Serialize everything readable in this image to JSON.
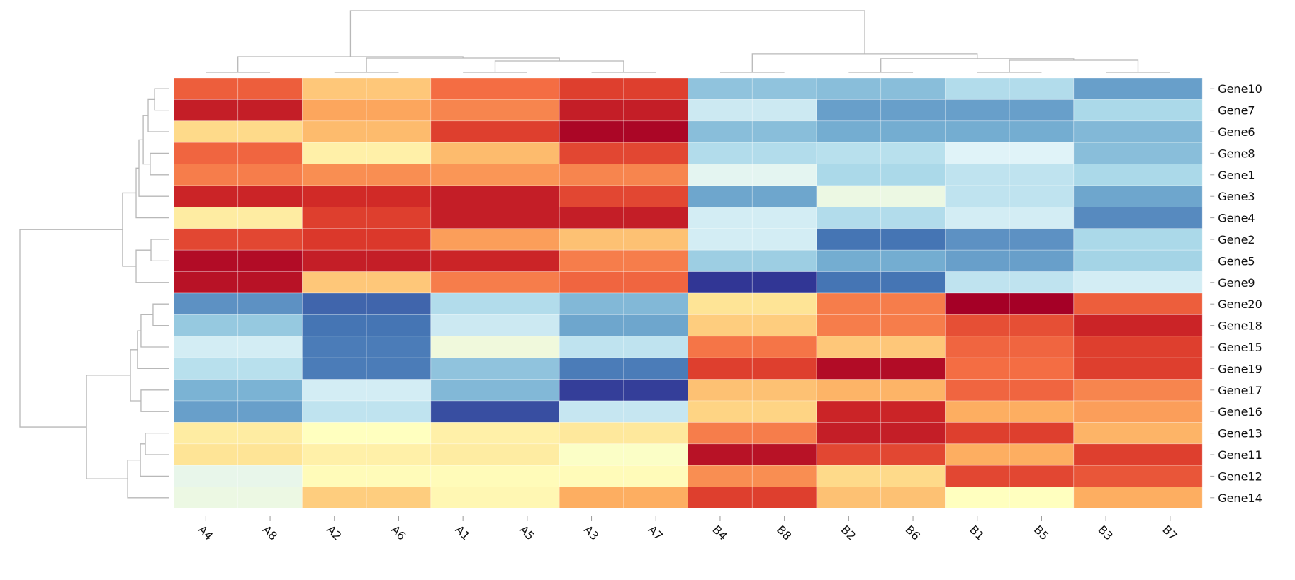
{
  "chart_data": {
    "type": "heatmap",
    "title": "",
    "xlabel": "",
    "ylabel": "",
    "columns": [
      "A4",
      "A8",
      "A2",
      "A6",
      "A1",
      "A5",
      "A3",
      "A7",
      "B4",
      "B8",
      "B2",
      "B6",
      "B1",
      "B5",
      "B3",
      "B7"
    ],
    "rows": [
      "Gene10",
      "Gene7",
      "Gene6",
      "Gene8",
      "Gene1",
      "Gene3",
      "Gene4",
      "Gene2",
      "Gene5",
      "Gene9",
      "Gene20",
      "Gene18",
      "Gene15",
      "Gene19",
      "Gene17",
      "Gene16",
      "Gene13",
      "Gene11",
      "Gene12",
      "Gene14"
    ],
    "value_range": [
      -2,
      2
    ],
    "colorscale": [
      "#313695",
      "#4575b4",
      "#74add1",
      "#abd9e9",
      "#e0f3f8",
      "#ffffbf",
      "#fee090",
      "#fdae61",
      "#f46d43",
      "#d73027",
      "#a50026"
    ],
    "values": [
      [
        1.3,
        1.3,
        0.6,
        0.6,
        1.2,
        1.2,
        1.5,
        1.5,
        -1.0,
        -1.0,
        -1.05,
        -1.05,
        -0.75,
        -0.75,
        -1.3,
        -1.3
      ],
      [
        1.75,
        1.75,
        0.85,
        0.85,
        1.05,
        1.05,
        1.75,
        1.75,
        -0.55,
        -0.55,
        -1.3,
        -1.3,
        -1.3,
        -1.3,
        -0.8,
        -0.8
      ],
      [
        0.45,
        0.45,
        0.7,
        0.7,
        1.5,
        1.5,
        1.95,
        1.95,
        -1.05,
        -1.05,
        -1.2,
        -1.2,
        -1.2,
        -1.2,
        -1.1,
        -1.1
      ],
      [
        1.25,
        1.25,
        0.2,
        0.2,
        0.7,
        0.7,
        1.45,
        1.45,
        -0.75,
        -0.75,
        -0.7,
        -0.7,
        -0.4,
        -0.4,
        -1.05,
        -1.05
      ],
      [
        1.1,
        1.1,
        1.0,
        1.0,
        0.95,
        0.95,
        1.05,
        1.05,
        -0.35,
        -0.35,
        -0.8,
        -0.8,
        -0.65,
        -0.65,
        -0.8,
        -0.8
      ],
      [
        1.7,
        1.7,
        1.65,
        1.65,
        1.75,
        1.75,
        1.45,
        1.45,
        -1.25,
        -1.25,
        -0.25,
        -0.25,
        -0.65,
        -0.65,
        -1.25,
        -1.25
      ],
      [
        0.25,
        0.25,
        1.5,
        1.5,
        1.75,
        1.75,
        1.75,
        1.75,
        -0.5,
        -0.5,
        -0.75,
        -0.75,
        -0.5,
        -0.5,
        -1.45,
        -1.45
      ],
      [
        1.45,
        1.45,
        1.55,
        1.55,
        0.9,
        0.9,
        0.65,
        0.65,
        -0.5,
        -0.5,
        -1.6,
        -1.6,
        -1.4,
        -1.4,
        -0.8,
        -0.8
      ],
      [
        1.9,
        1.9,
        1.75,
        1.75,
        1.7,
        1.7,
        1.1,
        1.1,
        -0.9,
        -0.9,
        -1.2,
        -1.2,
        -1.3,
        -1.3,
        -0.85,
        -0.85
      ],
      [
        1.85,
        1.85,
        0.6,
        0.6,
        1.1,
        1.1,
        1.25,
        1.25,
        -2.0,
        -2.0,
        -1.6,
        -1.6,
        -0.65,
        -0.65,
        -0.5,
        -0.5
      ],
      [
        -1.4,
        -1.4,
        -1.7,
        -1.7,
        -0.75,
        -0.75,
        -1.1,
        -1.1,
        0.35,
        0.35,
        1.1,
        1.1,
        2.0,
        2.0,
        1.3,
        1.3
      ],
      [
        -0.95,
        -0.95,
        -1.6,
        -1.6,
        -0.55,
        -0.55,
        -1.25,
        -1.25,
        0.55,
        0.55,
        1.1,
        1.1,
        1.4,
        1.4,
        1.7,
        1.7
      ],
      [
        -0.5,
        -0.5,
        -1.55,
        -1.55,
        -0.2,
        -0.2,
        -0.65,
        -0.65,
        1.15,
        1.15,
        0.6,
        0.6,
        1.25,
        1.25,
        1.5,
        1.5
      ],
      [
        -0.7,
        -0.7,
        -1.55,
        -1.55,
        -1.0,
        -1.0,
        -1.55,
        -1.55,
        1.5,
        1.5,
        1.9,
        1.9,
        1.2,
        1.2,
        1.5,
        1.5
      ],
      [
        -1.15,
        -1.15,
        -0.5,
        -0.5,
        -1.1,
        -1.1,
        -1.95,
        -1.95,
        0.65,
        0.65,
        0.75,
        0.75,
        1.25,
        1.25,
        1.05,
        1.05
      ],
      [
        -1.3,
        -1.3,
        -0.65,
        -0.65,
        -1.85,
        -1.85,
        -0.6,
        -0.6,
        0.5,
        0.5,
        1.7,
        1.7,
        0.8,
        0.8,
        0.9,
        0.9
      ],
      [
        0.25,
        0.25,
        0.0,
        0.0,
        0.2,
        0.2,
        0.3,
        0.3,
        1.1,
        1.1,
        1.75,
        1.75,
        1.5,
        1.5,
        0.75,
        0.75
      ],
      [
        0.35,
        0.35,
        0.2,
        0.2,
        0.25,
        0.25,
        -0.05,
        -0.05,
        1.85,
        1.85,
        1.45,
        1.45,
        0.8,
        0.8,
        1.5,
        1.5
      ],
      [
        -0.3,
        -0.3,
        0.05,
        0.05,
        0.05,
        0.05,
        0.05,
        0.05,
        1.0,
        1.0,
        0.45,
        0.45,
        1.45,
        1.45,
        1.35,
        1.35
      ],
      [
        -0.25,
        -0.25,
        0.55,
        0.55,
        0.1,
        0.1,
        0.8,
        0.8,
        1.5,
        1.5,
        0.65,
        0.65,
        0.0,
        0.0,
        0.8,
        0.8
      ]
    ],
    "column_dendrogram": {
      "h": 10,
      "c": [
        {
          "h": 2.53,
          "c": [
            {
              "h": 0,
              "c": [
                "A4",
                "A8"
              ]
            },
            {
              "h": 2.3,
              "c": [
                {
                  "h": 0,
                  "c": [
                    "A2",
                    "A6"
                  ]
                },
                {
                  "h": 1.84,
                  "c": [
                    {
                      "h": 0,
                      "c": [
                        "A1",
                        "A5"
                      ]
                    },
                    {
                      "h": 0,
                      "c": [
                        "A3",
                        "A7"
                      ]
                    }
                  ]
                }
              ]
            }
          ]
        },
        {
          "h": 3.0,
          "c": [
            {
              "h": 0,
              "c": [
                "B4",
                "B8"
              ]
            },
            {
              "h": 2.2,
              "c": [
                {
                  "h": 0,
                  "c": [
                    "B2",
                    "B6"
                  ]
                },
                {
                  "h": 1.95,
                  "c": [
                    {
                      "h": 0,
                      "c": [
                        "B1",
                        "B5"
                      ]
                    },
                    {
                      "h": 0,
                      "c": [
                        "B3",
                        "B7"
                      ]
                    }
                  ]
                }
              ]
            }
          ]
        }
      ]
    },
    "row_dendrogram": {
      "h": 10,
      "c": [
        {
          "h": 3.1,
          "c": [
            {
              "h": 2.19,
              "c": [
                {
                  "h": 2.0,
                  "c": [
                    {
                      "h": 1.71,
                      "c": [
                        {
                          "h": 1.38,
                          "c": [
                            {
                              "h": 0.95,
                              "c": [
                                "Gene10",
                                "Gene7"
                              ]
                            },
                            "Gene6"
                          ]
                        },
                        {
                          "h": 1.24,
                          "c": [
                            "Gene8",
                            "Gene1"
                          ]
                        }
                      ]
                    },
                    "Gene3"
                  ]
                },
                "Gene4"
              ]
            },
            {
              "h": 2.19,
              "c": [
                {
                  "h": 1.19,
                  "c": [
                    "Gene2",
                    "Gene5"
                  ]
                },
                "Gene9"
              ]
            }
          ]
        },
        {
          "h": 5.52,
          "c": [
            {
              "h": 2.57,
              "c": [
                {
                  "h": 2.1,
                  "c": [
                    {
                      "h": 1.86,
                      "c": [
                        {
                          "h": 1.05,
                          "c": [
                            "Gene20",
                            "Gene18"
                          ]
                        },
                        "Gene15"
                      ]
                    },
                    "Gene19"
                  ]
                },
                {
                  "h": 1.86,
                  "c": [
                    "Gene17",
                    "Gene16"
                  ]
                }
              ]
            },
            {
              "h": 2.76,
              "c": [
                {
                  "h": 1.9,
                  "c": [
                    {
                      "h": 1.57,
                      "c": [
                        "Gene13",
                        "Gene11"
                      ]
                    },
                    "Gene12"
                  ]
                },
                "Gene14"
              ]
            }
          ]
        }
      ]
    },
    "grid": false,
    "legend": "none"
  }
}
